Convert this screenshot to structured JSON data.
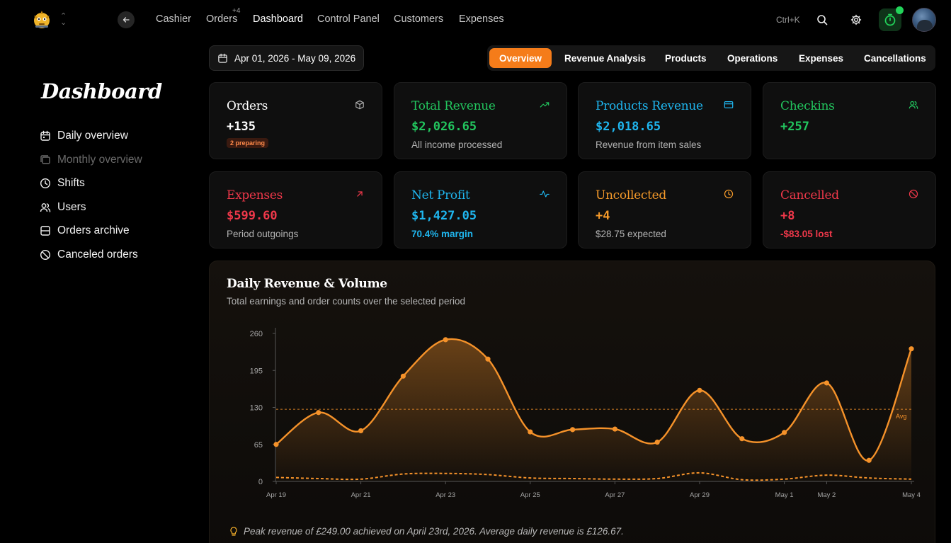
{
  "nav": {
    "items": [
      "Cashier",
      "Orders",
      "Dashboard",
      "Control Panel",
      "Customers",
      "Expenses"
    ],
    "orders_badge": "+4",
    "active": "Dashboard",
    "shortcut": "Ctrl+K"
  },
  "date_range": "Apr 01, 2026 - May 09, 2026",
  "tabs": [
    "Overview",
    "Revenue Analysis",
    "Products",
    "Operations",
    "Expenses",
    "Cancellations"
  ],
  "active_tab": "Overview",
  "sidebar": {
    "title": "Dashboard",
    "items": [
      {
        "label": "Daily overview",
        "icon": "calendar-icon",
        "enabled": true
      },
      {
        "label": "Monthly overview",
        "icon": "stack-icon",
        "enabled": false
      },
      {
        "label": "Shifts",
        "icon": "clock-icon",
        "enabled": true
      },
      {
        "label": "Users",
        "icon": "users-icon",
        "enabled": true
      },
      {
        "label": "Orders archive",
        "icon": "archive-icon",
        "enabled": true
      },
      {
        "label": "Canceled orders",
        "icon": "ban-icon",
        "enabled": true
      }
    ]
  },
  "cards": [
    {
      "title": "Orders",
      "value": "+135",
      "badge": "2 preparing",
      "icon": "box-icon",
      "color": "#ffffff"
    },
    {
      "title": "Total Revenue",
      "value": "$2,026.65",
      "sub": "All income processed",
      "icon": "trending-up-icon",
      "color": "#22c55e"
    },
    {
      "title": "Products Revenue",
      "value": "$2,018.65",
      "sub": "Revenue from item sales",
      "icon": "card-icon",
      "color": "#1fb6ef"
    },
    {
      "title": "Checkins",
      "value": "+257",
      "icon": "users-icon",
      "color": "#22c55e"
    },
    {
      "title": "Expenses",
      "value": "$599.60",
      "sub": "Period outgoings",
      "icon": "arrow-up-right-icon",
      "color": "#f0384a"
    },
    {
      "title": "Net Profit",
      "value": "$1,427.05",
      "sub": "70.4% margin",
      "sub_color": "#1fb6ef",
      "icon": "activity-icon",
      "color": "#1fb6ef"
    },
    {
      "title": "Uncollected",
      "value": "+4",
      "sub": "$28.75 expected",
      "icon": "clock-icon",
      "color": "#f59a2a"
    },
    {
      "title": "Cancelled",
      "value": "+8",
      "sub": "-$83.05 lost",
      "sub_color": "#f0384a",
      "icon": "ban-icon",
      "color": "#f0384a"
    }
  ],
  "chart": {
    "title": "Daily Revenue & Volume",
    "subtitle": "Total earnings and order counts over the selected period",
    "avg_label": "Avg",
    "insight": "Peak revenue of £249.00 achieved on April 23rd, 2026. Average daily revenue is £126.67."
  },
  "chart_data": {
    "type": "area",
    "x": [
      "Apr 19",
      "Apr 20",
      "Apr 21",
      "Apr 22",
      "Apr 23",
      "Apr 24",
      "Apr 25",
      "Apr 26",
      "Apr 27",
      "Apr 28",
      "Apr 29",
      "Apr 30",
      "May 1",
      "May 2",
      "May 3",
      "May 4"
    ],
    "x_ticks": [
      "Apr 19",
      "Apr 21",
      "Apr 23",
      "Apr 25",
      "Apr 27",
      "Apr 29",
      "May 1",
      "May 2",
      "May 4"
    ],
    "y_ticks": [
      0,
      65,
      130,
      195,
      260
    ],
    "ylim": [
      0,
      260
    ],
    "series": [
      {
        "values": [
          65,
          121,
          89,
          185,
          249,
          215,
          87,
          91,
          92,
          69,
          160,
          75,
          86,
          173,
          37,
          233
        ],
        "color": "#f5922a"
      },
      {
        "values": [
          7,
          5,
          4,
          13,
          14,
          12,
          6,
          5,
          4,
          5,
          15,
          3,
          4,
          11,
          6,
          4
        ],
        "color": "#f5922a"
      }
    ],
    "avg": 126.67,
    "grid": false
  },
  "colors": {
    "accent": "#f57c1a"
  }
}
